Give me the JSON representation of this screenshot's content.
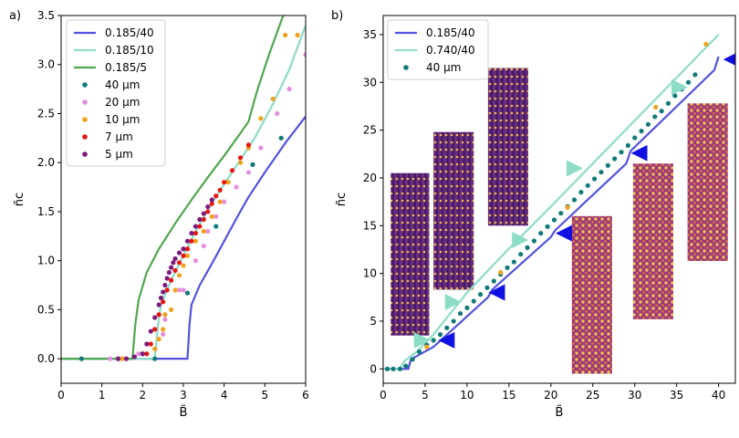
{
  "chart_data": [
    {
      "panel_label": "a)",
      "type": "line",
      "xlabel": "B̃",
      "ylabel": "ñc",
      "xlim": [
        0,
        6
      ],
      "ylim": [
        -0.25,
        3.5
      ],
      "xticks": [
        0,
        1,
        2,
        3,
        4,
        5,
        6
      ],
      "yticks": [
        0.0,
        0.5,
        1.0,
        1.5,
        2.0,
        2.5,
        3.0,
        3.5
      ],
      "grid": false,
      "legend_position": "top-left",
      "series": [
        {
          "name": "0.185/40",
          "kind": "line",
          "color": "#5252e0",
          "x": [
            0,
            3.1,
            3.15,
            3.2,
            3.4,
            3.7,
            4.0,
            4.3,
            4.6,
            5.0,
            5.5,
            6.0
          ],
          "y": [
            0,
            0,
            0.35,
            0.55,
            0.75,
            0.97,
            1.2,
            1.43,
            1.65,
            1.9,
            2.2,
            2.47
          ]
        },
        {
          "name": "0.185/10",
          "kind": "line",
          "color": "#8ddcc6",
          "x": [
            0,
            2.3,
            2.38,
            2.45,
            2.7,
            3.0,
            3.3,
            3.6,
            4.0,
            4.4,
            4.75,
            5.2,
            5.6,
            6.0
          ],
          "y": [
            0,
            0,
            0.35,
            0.55,
            0.8,
            1.05,
            1.3,
            1.52,
            1.78,
            2.03,
            2.25,
            2.6,
            2.95,
            3.4
          ]
        },
        {
          "name": "0.185/5",
          "kind": "line",
          "color": "#4ea84e",
          "x": [
            0,
            1.75,
            1.82,
            1.9,
            2.1,
            2.4,
            2.8,
            3.2,
            3.6,
            4.0,
            4.4,
            4.6,
            4.8,
            5.1,
            5.45
          ],
          "y": [
            0,
            0,
            0.35,
            0.6,
            0.88,
            1.12,
            1.38,
            1.62,
            1.85,
            2.07,
            2.3,
            2.42,
            2.72,
            3.1,
            3.5
          ]
        },
        {
          "name": "40 µm",
          "kind": "scatter",
          "color": "#117a78",
          "x": [
            0.5,
            1.4,
            2.3,
            3.1,
            3.8,
            4.7,
            5.4
          ],
          "y": [
            0,
            0,
            0,
            0.67,
            1.35,
            1.98,
            2.25
          ]
        },
        {
          "name": "20 µm",
          "kind": "scatter",
          "color": "#e58ee0",
          "x": [
            1.2,
            1.9,
            2.5,
            2.55,
            2.9,
            3.0,
            3.3,
            3.5,
            3.6,
            3.8,
            4.0,
            4.3,
            4.6,
            4.9,
            5.3,
            5.6,
            6.0
          ],
          "y": [
            0,
            0.05,
            0.25,
            0.4,
            0.7,
            0.7,
            1.0,
            1.15,
            1.3,
            1.45,
            1.6,
            1.75,
            1.9,
            2.15,
            2.5,
            2.75,
            3.1
          ]
        },
        {
          "name": "10 µm",
          "kind": "scatter",
          "color": "#f0a11d",
          "x": [
            1.5,
            2.0,
            2.3,
            2.4,
            2.5,
            2.55,
            2.7,
            2.8,
            2.9,
            3.0,
            3.1,
            3.3,
            3.5,
            3.7,
            3.9,
            4.1,
            4.4,
            4.6,
            4.9,
            5.2,
            5.5,
            5.8
          ],
          "y": [
            0,
            0.05,
            0.1,
            0.2,
            0.3,
            0.45,
            0.5,
            0.7,
            0.85,
            0.95,
            1.05,
            1.2,
            1.3,
            1.45,
            1.6,
            1.8,
            2.0,
            2.15,
            2.45,
            2.65,
            3.3,
            3.3
          ]
        },
        {
          "name": "7 µm",
          "kind": "scatter",
          "color": "#e8160f",
          "x": [
            2.1,
            2.2,
            2.3,
            2.4,
            2.5,
            2.6,
            2.7,
            2.8,
            2.9,
            3.0,
            3.1,
            3.2,
            3.3,
            3.4,
            3.5,
            3.6,
            3.7,
            3.8,
            3.9,
            4.0,
            4.2,
            4.4,
            4.6
          ],
          "y": [
            0.05,
            0.15,
            0.3,
            0.45,
            0.58,
            0.7,
            0.8,
            0.9,
            0.98,
            1.05,
            1.12,
            1.2,
            1.28,
            1.35,
            1.42,
            1.5,
            1.58,
            1.66,
            1.72,
            1.8,
            1.92,
            2.05,
            2.18
          ]
        },
        {
          "name": "5 µm",
          "kind": "scatter",
          "color": "#7b1a7b",
          "x": [
            1.4,
            1.6,
            1.8,
            2.0,
            2.1,
            2.2,
            2.3,
            2.4,
            2.45,
            2.5,
            2.55,
            2.6,
            2.65,
            2.7,
            2.75,
            2.8,
            2.9,
            3.0,
            3.1,
            3.2,
            3.3,
            3.4,
            3.5,
            3.6,
            3.7
          ],
          "y": [
            0,
            0,
            0.02,
            0.05,
            0.15,
            0.28,
            0.42,
            0.55,
            0.62,
            0.68,
            0.75,
            0.82,
            0.88,
            0.93,
            0.98,
            1.02,
            1.08,
            1.12,
            1.2,
            1.28,
            1.35,
            1.42,
            1.48,
            1.55,
            1.62
          ]
        }
      ]
    },
    {
      "panel_label": "b)",
      "type": "line",
      "xlabel": "B̃",
      "ylabel": "ñc",
      "xlim": [
        0,
        42
      ],
      "ylim": [
        -1.5,
        37
      ],
      "xticks": [
        0,
        5,
        10,
        15,
        20,
        25,
        30,
        35,
        40
      ],
      "yticks": [
        0,
        5,
        10,
        15,
        20,
        25,
        30,
        35
      ],
      "grid": false,
      "legend_position": "top-left",
      "series": [
        {
          "name": "0.185/40",
          "kind": "line",
          "color": "#5252e0",
          "x": [
            0,
            3.0,
            3.3,
            6.0,
            12.5,
            13.0,
            20.0,
            20.5,
            29.0,
            29.5,
            39.5,
            40.0
          ],
          "y": [
            0,
            0,
            1.0,
            2.3,
            7.5,
            8.3,
            13.8,
            14.5,
            21.5,
            22.8,
            31.3,
            32.7
          ]
        },
        {
          "name": "0.740/40",
          "kind": "line",
          "color": "#8ddcc6",
          "x": [
            0,
            2.0,
            2.5,
            4.0,
            6.0,
            10.0,
            15.0,
            20.0,
            25.0,
            30.0,
            35.0,
            40.0
          ],
          "y": [
            0,
            0,
            0.8,
            1.8,
            3.6,
            8.0,
            12.6,
            17.0,
            21.5,
            26.0,
            30.5,
            35.0
          ]
        },
        {
          "name": "40 µm",
          "kind": "scatter",
          "color": "#117a78",
          "x": [
            0.5,
            1.2,
            2.0,
            2.7,
            3.5,
            4.3,
            5.2,
            6.0,
            6.8,
            7.6,
            8.4,
            9.2,
            10.0,
            10.8,
            11.6,
            12.4,
            13.2,
            14.0,
            14.8,
            15.6,
            16.4,
            17.2,
            18.0,
            18.8,
            19.6,
            20.4,
            21.2,
            22.0,
            22.8,
            23.6,
            24.4,
            25.2,
            26.0,
            26.8,
            27.6,
            28.4,
            29.2,
            30.0,
            30.8,
            31.6,
            32.4,
            33.2,
            34.0,
            34.8,
            35.6,
            36.4,
            37.2
          ],
          "y": [
            0,
            0,
            0,
            0.3,
            1.0,
            1.8,
            2.5,
            3.0,
            3.6,
            4.3,
            5.0,
            5.8,
            6.4,
            7.1,
            7.8,
            8.5,
            9.2,
            9.9,
            10.6,
            11.2,
            12.0,
            12.7,
            13.4,
            14.2,
            14.9,
            15.6,
            16.3,
            17.0,
            17.7,
            18.5,
            19.2,
            19.9,
            20.6,
            21.3,
            22.0,
            22.7,
            23.4,
            24.2,
            24.9,
            25.6,
            26.4,
            27.0,
            27.8,
            28.6,
            29.3,
            30.0,
            30.8
          ]
        },
        {
          "name": "orange markers",
          "kind": "scatter-unlabeled",
          "color": "#f0a11d",
          "x": [
            5.2,
            14.0,
            22.0,
            32.5,
            38.5
          ],
          "y": [
            2.3,
            10.1,
            16.9,
            27.4,
            34.0
          ]
        }
      ],
      "annotations": {
        "arrows_teal": [
          [
            5.3,
            3.0
          ],
          [
            9.0,
            7.0
          ],
          [
            17.0,
            13.5
          ],
          [
            23.5,
            21.0
          ],
          [
            36.0,
            29.5
          ]
        ],
        "arrows_blue": [
          [
            7.0,
            3.0
          ],
          [
            13.0,
            8.0
          ],
          [
            21.0,
            14.2
          ],
          [
            30.0,
            22.6
          ],
          [
            41.0,
            32.4
          ]
        ]
      },
      "insets": [
        {
          "x": [
            0.9,
            5.5
          ],
          "y": [
            3.5,
            20.5
          ],
          "style": "stripes"
        },
        {
          "x": [
            6.0,
            10.8
          ],
          "y": [
            8.3,
            24.8
          ],
          "style": "stripes"
        },
        {
          "x": [
            12.5,
            17.3
          ],
          "y": [
            15.0,
            31.5
          ],
          "style": "stripes"
        },
        {
          "x": [
            22.5,
            27.3
          ],
          "y": [
            -0.5,
            16.0
          ],
          "style": "lattice"
        },
        {
          "x": [
            29.8,
            34.6
          ],
          "y": [
            5.2,
            21.5
          ],
          "style": "lattice"
        },
        {
          "x": [
            36.3,
            41.1
          ],
          "y": [
            11.3,
            27.8
          ],
          "style": "lattice"
        }
      ]
    }
  ]
}
